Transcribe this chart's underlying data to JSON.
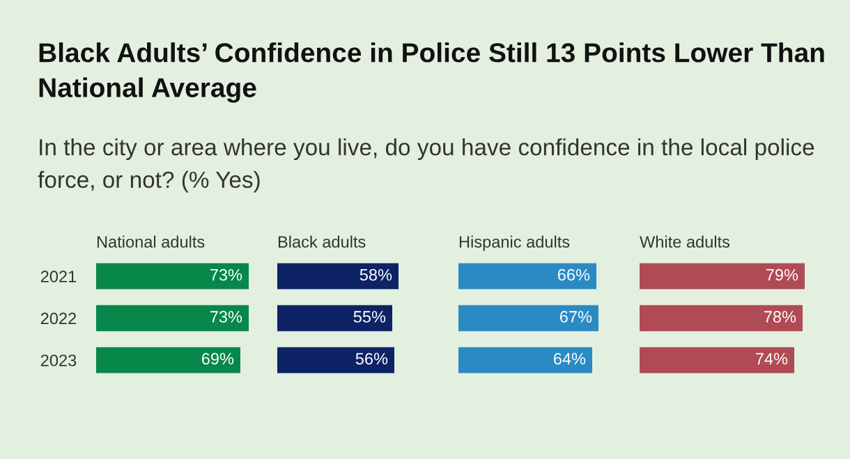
{
  "chart_data": [
    {
      "type": "bar",
      "orientation": "horizontal",
      "title": "Black Adults’ Confidence in Police Still 13 Points Lower Than National Average",
      "subtitle": "In the city or area where you live, do you have confidence in the local police force, or not? (% Yes)",
      "xlabel": "National adults",
      "categories": [
        "2021",
        "2022",
        "2023"
      ],
      "values": [
        73,
        73,
        69
      ],
      "value_labels": [
        "73%",
        "73%",
        "69%"
      ],
      "color": "#07874a",
      "tick_labels": "y",
      "grid": false
    },
    {
      "type": "bar",
      "orientation": "horizontal",
      "xlabel": "Black adults",
      "categories": [
        "2021",
        "2022",
        "2023"
      ],
      "values": [
        58,
        55,
        56
      ],
      "value_labels": [
        "58%",
        "55%",
        "56%"
      ],
      "color": "#0d2366",
      "tick_labels": false,
      "grid": false
    },
    {
      "type": "bar",
      "orientation": "horizontal",
      "xlabel": "Hispanic adults",
      "categories": [
        "2021",
        "2022",
        "2023"
      ],
      "values": [
        66,
        67,
        64
      ],
      "value_labels": [
        "66%",
        "67%",
        "64%"
      ],
      "color": "#2a8bc4",
      "tick_labels": false,
      "grid": false
    },
    {
      "type": "bar",
      "orientation": "horizontal",
      "xlabel": "White adults",
      "categories": [
        "2021",
        "2022",
        "2023"
      ],
      "values": [
        79,
        78,
        74
      ],
      "value_labels": [
        "79%",
        "78%",
        "74%"
      ],
      "color": "#b04a55",
      "tick_labels": false,
      "grid": false
    }
  ]
}
